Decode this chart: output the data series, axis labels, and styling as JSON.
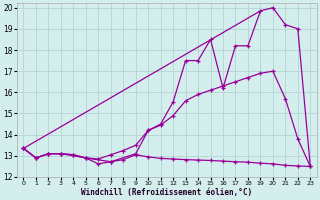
{
  "xlabel": "Windchill (Refroidissement éolien,°C)",
  "background_color": "#d4eeee",
  "grid_color": "#b8d8d8",
  "line_color": "#990099",
  "xlim": [
    -0.5,
    23.5
  ],
  "ylim": [
    12,
    20.2
  ],
  "yticks": [
    12,
    13,
    14,
    15,
    16,
    17,
    18,
    19,
    20
  ],
  "xticks": [
    0,
    1,
    2,
    3,
    4,
    5,
    6,
    7,
    8,
    9,
    10,
    11,
    12,
    13,
    14,
    15,
    16,
    17,
    18,
    19,
    20,
    21,
    22,
    23
  ],
  "series1_x": [
    0,
    1,
    2,
    3,
    4,
    5,
    6,
    7,
    8,
    9,
    10,
    11,
    12,
    13,
    14,
    15,
    16,
    17,
    18,
    19,
    20,
    21,
    22,
    23
  ],
  "series1_y": [
    13.35,
    12.9,
    13.1,
    13.1,
    13.05,
    12.9,
    12.62,
    12.72,
    12.82,
    13.05,
    12.95,
    12.88,
    12.85,
    12.82,
    12.8,
    12.78,
    12.75,
    12.72,
    12.7,
    12.65,
    12.62,
    12.55,
    12.52,
    12.5
  ],
  "series2_x": [
    0,
    1,
    2,
    3,
    4,
    5,
    6,
    7,
    8,
    9,
    10,
    11,
    12,
    13,
    14,
    15,
    16,
    17,
    18,
    19,
    20,
    21,
    22,
    23
  ],
  "series2_y": [
    13.35,
    12.9,
    13.1,
    13.1,
    13.05,
    12.9,
    12.85,
    13.05,
    13.25,
    13.5,
    14.2,
    14.45,
    14.9,
    15.6,
    15.9,
    16.1,
    16.3,
    16.5,
    16.7,
    16.9,
    17.0,
    15.7,
    13.8,
    12.5
  ],
  "series3_x": [
    0,
    1,
    2,
    3,
    5,
    7,
    9,
    10,
    11,
    12,
    13,
    14,
    15,
    16,
    17,
    18,
    19,
    20,
    21,
    22,
    23
  ],
  "series3_y": [
    13.35,
    12.9,
    13.1,
    13.1,
    12.9,
    12.72,
    13.1,
    14.2,
    14.5,
    15.55,
    17.5,
    17.5,
    18.5,
    16.2,
    18.2,
    18.2,
    19.85,
    20.0,
    19.2,
    19.0,
    12.5
  ],
  "series4_x": [
    0,
    19
  ],
  "series4_y": [
    13.35,
    19.85
  ]
}
